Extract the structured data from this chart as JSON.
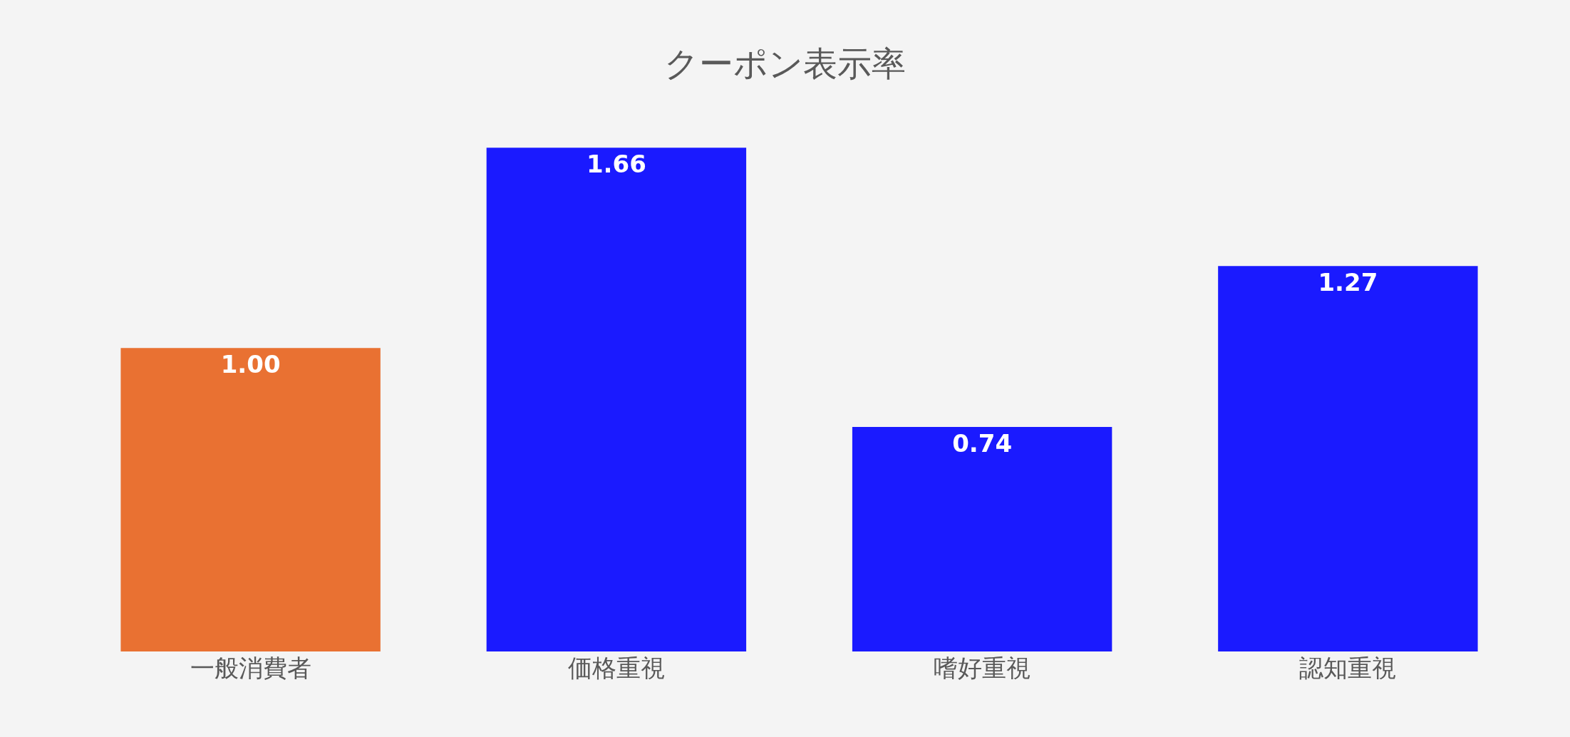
{
  "chart_data": {
    "type": "bar",
    "title": "クーポン表示率",
    "categories": [
      "一般消費者",
      "価格重視",
      "嗜好重視",
      "認知重視"
    ],
    "values": [
      1.0,
      1.66,
      0.74,
      1.27
    ],
    "value_labels": [
      "1.00",
      "1.66",
      "0.74",
      "1.27"
    ],
    "colors": [
      "#e97132",
      "#1a1aff",
      "#1a1aff",
      "#1a1aff"
    ],
    "grid": false,
    "legend": false
  }
}
